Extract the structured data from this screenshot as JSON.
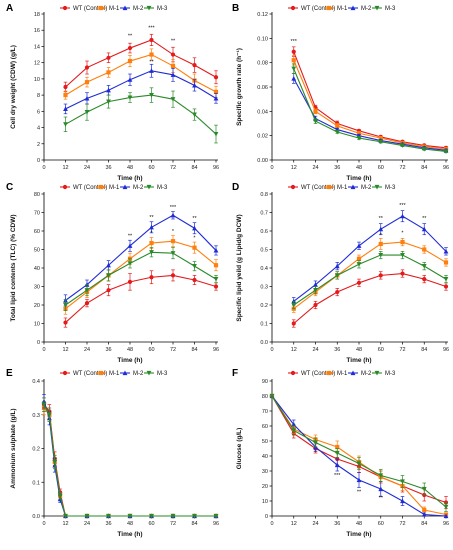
{
  "series_colors": [
    "#e41a1c",
    "#ff7f0e",
    "#1f2cd6",
    "#2a8a2a"
  ],
  "series_markers": [
    "circle",
    "square",
    "triangle-up",
    "triangle-down"
  ],
  "chart_data": [
    {
      "panel": "A",
      "type": "line",
      "xlabel": "Time (h)",
      "ylabel": "Cell dry weight (CDW) (g/L)",
      "xlim": [
        0,
        96
      ],
      "ylim": [
        0,
        18
      ],
      "xticks": [
        0,
        12,
        24,
        36,
        48,
        60,
        72,
        84,
        96
      ],
      "yticks": [
        0,
        2,
        4,
        6,
        8,
        10,
        12,
        14,
        16,
        18
      ],
      "legend": "top",
      "x": [
        12,
        24,
        36,
        48,
        60,
        72,
        84,
        96
      ],
      "series": [
        {
          "name": "WT (Control)",
          "values": [
            9.0,
            11.4,
            12.6,
            13.8,
            14.8,
            13.0,
            11.7,
            10.2
          ],
          "err": [
            0.6,
            0.8,
            0.6,
            0.6,
            0.7,
            0.9,
            0.9,
            0.8
          ]
        },
        {
          "name": "M-1",
          "values": [
            8.0,
            9.6,
            10.8,
            12.2,
            13.0,
            11.6,
            9.8,
            8.4
          ],
          "err": [
            0.5,
            0.6,
            0.6,
            0.7,
            0.7,
            0.8,
            0.8,
            0.7
          ]
        },
        {
          "name": "M-2",
          "values": [
            6.3,
            7.6,
            8.6,
            9.9,
            11.0,
            10.5,
            9.2,
            7.6
          ],
          "err": [
            0.6,
            0.7,
            0.6,
            0.7,
            0.8,
            0.8,
            0.7,
            0.6
          ]
        },
        {
          "name": "M-3",
          "values": [
            4.4,
            5.9,
            7.2,
            7.7,
            8.0,
            7.5,
            5.6,
            3.2
          ],
          "err": [
            0.9,
            1.0,
            0.8,
            0.6,
            0.9,
            1.0,
            0.7,
            1.1
          ]
        }
      ],
      "annotations": [
        {
          "x": 48,
          "y": 15.1,
          "text": "**"
        },
        {
          "x": 60,
          "y": 16.1,
          "text": "***"
        },
        {
          "x": 72,
          "y": 14.5,
          "text": "**"
        },
        {
          "x": 60,
          "y": 11.9,
          "text": "**"
        }
      ]
    },
    {
      "panel": "B",
      "type": "line",
      "xlabel": "Time (h)",
      "ylabel": "Specific growth rate (h⁻¹)",
      "xlim": [
        0,
        96
      ],
      "ylim": [
        0,
        0.12
      ],
      "xticks": [
        0,
        12,
        24,
        36,
        48,
        60,
        72,
        84,
        96
      ],
      "yticks": [
        0.0,
        0.02,
        0.04,
        0.06,
        0.08,
        0.1,
        0.12
      ],
      "ytick_labels": [
        "0.00",
        "0.02",
        "0.04",
        "0.06",
        "0.08",
        "0.10",
        "0.12"
      ],
      "legend": "top",
      "x": [
        12,
        24,
        36,
        48,
        60,
        72,
        84,
        96
      ],
      "series": [
        {
          "name": "WT (Control)",
          "values": [
            0.089,
            0.043,
            0.03,
            0.024,
            0.019,
            0.015,
            0.012,
            0.01
          ],
          "err": [
            0.004,
            0.002,
            0.002,
            0.001,
            0.001,
            0.001,
            0.001,
            0.001
          ]
        },
        {
          "name": "M-1",
          "values": [
            0.082,
            0.04,
            0.028,
            0.022,
            0.018,
            0.014,
            0.011,
            0.009
          ],
          "err": [
            0.004,
            0.002,
            0.002,
            0.001,
            0.001,
            0.001,
            0.001,
            0.001
          ]
        },
        {
          "name": "M-2",
          "values": [
            0.067,
            0.034,
            0.025,
            0.02,
            0.016,
            0.013,
            0.01,
            0.008
          ],
          "err": [
            0.004,
            0.002,
            0.001,
            0.001,
            0.001,
            0.001,
            0.001,
            0.001
          ]
        },
        {
          "name": "M-3",
          "values": [
            0.075,
            0.032,
            0.023,
            0.018,
            0.015,
            0.012,
            0.009,
            0.007
          ],
          "err": [
            0.004,
            0.002,
            0.001,
            0.001,
            0.001,
            0.001,
            0.001,
            0.001
          ]
        }
      ],
      "annotations": [
        {
          "x": 12,
          "y": 0.096,
          "text": "***"
        }
      ]
    },
    {
      "panel": "C",
      "type": "line",
      "xlabel": "Time (h)",
      "ylabel": "Total lipid contents (TLC) (% CDW)",
      "xlim": [
        0,
        96
      ],
      "ylim": [
        0,
        80
      ],
      "xticks": [
        0,
        12,
        24,
        36,
        48,
        60,
        72,
        84,
        96
      ],
      "yticks": [
        0,
        10,
        20,
        30,
        40,
        50,
        60,
        70,
        80
      ],
      "legend": "top",
      "x": [
        12,
        24,
        36,
        48,
        60,
        72,
        84,
        96
      ],
      "series": [
        {
          "name": "WT (Control)",
          "values": [
            10.5,
            21.0,
            28.0,
            32.5,
            35.0,
            36.0,
            33.5,
            30.0
          ],
          "err": [
            2.5,
            2.0,
            3.0,
            4.5,
            3.5,
            3.0,
            2.5,
            2.0
          ]
        },
        {
          "name": "M-1",
          "values": [
            18.0,
            27.0,
            36.0,
            45.0,
            53.5,
            54.5,
            51.0,
            41.5
          ],
          "err": [
            3.0,
            3.0,
            3.0,
            3.0,
            3.0,
            3.0,
            3.0,
            3.0
          ]
        },
        {
          "name": "M-2",
          "values": [
            22.5,
            31.0,
            41.5,
            52.0,
            62.0,
            68.5,
            61.5,
            49.5
          ],
          "err": [
            3.0,
            2.5,
            2.5,
            3.0,
            3.0,
            2.0,
            3.0,
            2.5
          ]
        },
        {
          "name": "M-3",
          "values": [
            20.0,
            28.0,
            36.0,
            42.5,
            48.5,
            48.0,
            41.0,
            34.0
          ],
          "err": [
            3.0,
            3.0,
            3.0,
            2.5,
            2.5,
            3.0,
            2.5,
            2.0
          ]
        }
      ],
      "annotations": [
        {
          "x": 48,
          "y": 56.5,
          "text": "**"
        },
        {
          "x": 60,
          "y": 66.5,
          "text": "**"
        },
        {
          "x": 72,
          "y": 72,
          "text": "***"
        },
        {
          "x": 84,
          "y": 66,
          "text": "**"
        },
        {
          "x": 60,
          "y": 58,
          "text": "*"
        },
        {
          "x": 72,
          "y": 59,
          "text": "*"
        },
        {
          "x": 84,
          "y": 55.5,
          "text": "*"
        }
      ]
    },
    {
      "panel": "D",
      "type": "line",
      "xlabel": "Time (h)",
      "ylabel": "Specific lipid yeild (g Lipid/g DCW)",
      "xlim": [
        0,
        96
      ],
      "ylim": [
        0,
        0.8
      ],
      "xticks": [
        0,
        12,
        24,
        36,
        48,
        60,
        72,
        84,
        96
      ],
      "yticks": [
        0.0,
        0.1,
        0.2,
        0.3,
        0.4,
        0.5,
        0.6,
        0.7,
        0.8
      ],
      "ytick_labels": [
        "0.0",
        "0.1",
        "0.2",
        "0.3",
        "0.4",
        "0.5",
        "0.6",
        "0.7",
        "0.8"
      ],
      "legend": "top",
      "x": [
        12,
        24,
        36,
        48,
        60,
        72,
        84,
        96
      ],
      "series": [
        {
          "name": "WT (Control)",
          "values": [
            0.1,
            0.2,
            0.27,
            0.32,
            0.36,
            0.37,
            0.34,
            0.3
          ],
          "err": [
            0.02,
            0.02,
            0.02,
            0.02,
            0.02,
            0.02,
            0.02,
            0.02
          ]
        },
        {
          "name": "M-1",
          "values": [
            0.18,
            0.27,
            0.36,
            0.45,
            0.53,
            0.54,
            0.5,
            0.43
          ],
          "err": [
            0.02,
            0.02,
            0.02,
            0.02,
            0.03,
            0.02,
            0.02,
            0.02
          ]
        },
        {
          "name": "M-2",
          "values": [
            0.22,
            0.31,
            0.41,
            0.52,
            0.61,
            0.68,
            0.61,
            0.49
          ],
          "err": [
            0.02,
            0.02,
            0.02,
            0.02,
            0.03,
            0.03,
            0.03,
            0.02
          ]
        },
        {
          "name": "M-3",
          "values": [
            0.2,
            0.28,
            0.36,
            0.42,
            0.47,
            0.47,
            0.41,
            0.34
          ],
          "err": [
            0.02,
            0.02,
            0.02,
            0.02,
            0.02,
            0.02,
            0.02,
            0.02
          ]
        }
      ],
      "annotations": [
        {
          "x": 60,
          "y": 0.66,
          "text": "**"
        },
        {
          "x": 72,
          "y": 0.73,
          "text": "***"
        },
        {
          "x": 84,
          "y": 0.66,
          "text": "**"
        },
        {
          "x": 60,
          "y": 0.57,
          "text": "*"
        },
        {
          "x": 72,
          "y": 0.58,
          "text": "*"
        }
      ]
    },
    {
      "panel": "E",
      "type": "line",
      "xlabel": "Time (h)",
      "ylabel": "Ammonium sulphate (g/L)",
      "xlim": [
        0,
        96
      ],
      "ylim": [
        0,
        0.4
      ],
      "xticks": [
        0,
        12,
        24,
        36,
        48,
        60,
        72,
        84,
        96
      ],
      "yticks": [
        0.0,
        0.1,
        0.2,
        0.3,
        0.4
      ],
      "ytick_labels": [
        "0.0",
        "0.1",
        "0.2",
        "0.3",
        "0.4"
      ],
      "legend": "top",
      "x": [
        0,
        3,
        6,
        9,
        12,
        24,
        36,
        48,
        60,
        72,
        84,
        96
      ],
      "series": [
        {
          "name": "WT (Control)",
          "values": [
            0.33,
            0.31,
            0.17,
            0.07,
            0,
            0,
            0,
            0,
            0,
            0,
            0,
            0
          ],
          "err": [
            0.02,
            0.02,
            0.02,
            0.01,
            0,
            0,
            0,
            0,
            0,
            0,
            0,
            0
          ]
        },
        {
          "name": "M-1",
          "values": [
            0.32,
            0.3,
            0.16,
            0.06,
            0,
            0,
            0,
            0,
            0,
            0,
            0,
            0
          ],
          "err": [
            0.02,
            0.02,
            0.02,
            0.01,
            0,
            0,
            0,
            0,
            0,
            0,
            0,
            0
          ]
        },
        {
          "name": "M-2",
          "values": [
            0.34,
            0.29,
            0.15,
            0.05,
            0,
            0,
            0,
            0,
            0,
            0,
            0,
            0
          ],
          "err": [
            0.02,
            0.02,
            0.02,
            0.01,
            0,
            0,
            0,
            0,
            0,
            0,
            0,
            0
          ]
        },
        {
          "name": "M-3",
          "values": [
            0.33,
            0.3,
            0.16,
            0.06,
            0,
            0,
            0,
            0,
            0,
            0,
            0,
            0
          ],
          "err": [
            0.02,
            0.02,
            0.02,
            0.01,
            0,
            0,
            0,
            0,
            0,
            0,
            0,
            0
          ]
        }
      ],
      "annotations": []
    },
    {
      "panel": "F",
      "type": "line",
      "xlabel": "Time (h)",
      "ylabel": "Glucose (g/L)",
      "xlim": [
        0,
        96
      ],
      "ylim": [
        0,
        90
      ],
      "xticks": [
        0,
        12,
        24,
        36,
        48,
        60,
        72,
        84,
        96
      ],
      "yticks": [
        0,
        10,
        20,
        30,
        40,
        50,
        60,
        70,
        80,
        90
      ],
      "legend": "top",
      "x": [
        0,
        12,
        24,
        36,
        48,
        60,
        72,
        84,
        96
      ],
      "series": [
        {
          "name": "WT (Control)",
          "values": [
            80,
            55,
            45,
            38,
            33,
            26,
            20,
            14,
            9
          ],
          "err": [
            1,
            3,
            3,
            4,
            4,
            4,
            4,
            4,
            4
          ]
        },
        {
          "name": "M-1",
          "values": [
            80,
            58,
            51,
            46,
            36,
            26,
            20,
            4,
            1
          ],
          "err": [
            1,
            3,
            3,
            4,
            4,
            4,
            3,
            2,
            1
          ]
        },
        {
          "name": "M-2",
          "values": [
            80,
            61,
            46,
            34,
            24,
            18,
            10,
            1,
            0
          ],
          "err": [
            1,
            3,
            3,
            4,
            5,
            5,
            3,
            1,
            0
          ]
        },
        {
          "name": "M-3",
          "values": [
            80,
            57,
            49,
            42,
            35,
            27,
            23,
            18,
            6
          ],
          "err": [
            1,
            3,
            3,
            3,
            4,
            4,
            4,
            4,
            3
          ]
        }
      ],
      "annotations": [
        {
          "x": 36,
          "y": 26,
          "text": "***"
        },
        {
          "x": 48,
          "y": 15,
          "text": "**"
        },
        {
          "x": 60,
          "y": 11,
          "text": "**"
        }
      ]
    }
  ]
}
